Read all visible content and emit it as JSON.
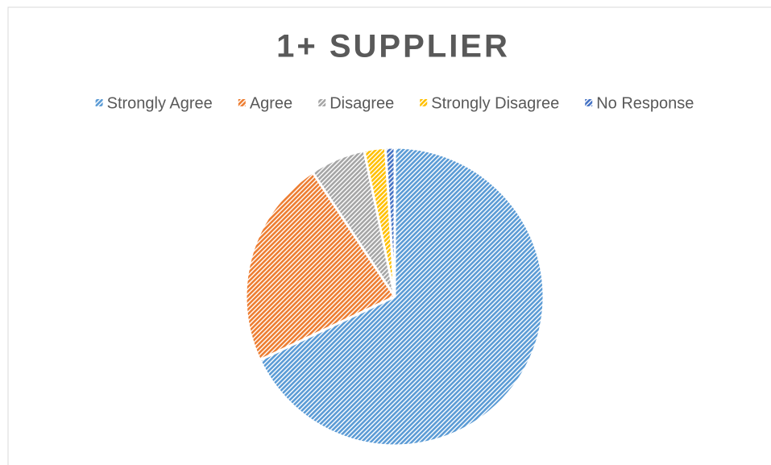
{
  "chart_data": {
    "type": "pie",
    "title": "1+ SUPPLIER",
    "series": [
      {
        "name": "Strongly Agree",
        "color": "#5b9bd5",
        "values": [
          68
        ]
      },
      {
        "name": "Agree",
        "color": "#ed7d31",
        "values": [
          22.7
        ]
      },
      {
        "name": "Disagree",
        "color": "#a5a5a5",
        "values": [
          6
        ]
      },
      {
        "name": "Strongly Disagree",
        "color": "#ffc000",
        "values": [
          2.3
        ]
      },
      {
        "name": "No Response",
        "color": "#4472c4",
        "values": [
          1
        ]
      }
    ],
    "legend": "top"
  }
}
